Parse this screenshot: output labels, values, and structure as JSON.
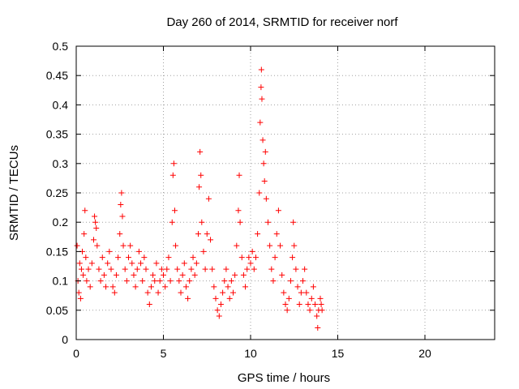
{
  "chart_data": {
    "type": "scatter",
    "title": "Day 260 of 2014, SRMTID for receiver norf",
    "xlabel": "GPS time / hours",
    "ylabel": "SRMTID / TECUs",
    "xlim": [
      0,
      24
    ],
    "ylim": [
      0,
      0.5
    ],
    "xticks": [
      "0",
      "5",
      "10",
      "15",
      "20"
    ],
    "xtick_values": [
      0,
      5,
      10,
      15,
      20
    ],
    "yticks": [
      "0",
      "0.05",
      "0.1",
      "0.15",
      "0.2",
      "0.25",
      "0.3",
      "0.35",
      "0.4",
      "0.45",
      "0.5"
    ],
    "ytick_values": [
      0,
      0.05,
      0.1,
      0.15,
      0.2,
      0.25,
      0.3,
      0.35,
      0.4,
      0.45,
      0.5
    ],
    "grid": true,
    "marker": "plus",
    "color": "#ff0000",
    "series": [
      {
        "name": "SRMTID",
        "points": [
          [
            0.05,
            0.16
          ],
          [
            0.1,
            0.1
          ],
          [
            0.15,
            0.08
          ],
          [
            0.2,
            0.13
          ],
          [
            0.25,
            0.07
          ],
          [
            0.3,
            0.12
          ],
          [
            0.35,
            0.15
          ],
          [
            0.4,
            0.11
          ],
          [
            0.45,
            0.18
          ],
          [
            0.5,
            0.22
          ],
          [
            0.55,
            0.14
          ],
          [
            0.6,
            0.1
          ],
          [
            0.7,
            0.12
          ],
          [
            0.8,
            0.09
          ],
          [
            0.9,
            0.13
          ],
          [
            1.0,
            0.17
          ],
          [
            1.05,
            0.21
          ],
          [
            1.1,
            0.2
          ],
          [
            1.15,
            0.19
          ],
          [
            1.2,
            0.16
          ],
          [
            1.3,
            0.12
          ],
          [
            1.4,
            0.1
          ],
          [
            1.5,
            0.14
          ],
          [
            1.6,
            0.11
          ],
          [
            1.7,
            0.09
          ],
          [
            1.8,
            0.13
          ],
          [
            1.9,
            0.15
          ],
          [
            2.0,
            0.12
          ],
          [
            2.1,
            0.09
          ],
          [
            2.2,
            0.08
          ],
          [
            2.3,
            0.11
          ],
          [
            2.4,
            0.14
          ],
          [
            2.5,
            0.18
          ],
          [
            2.55,
            0.23
          ],
          [
            2.6,
            0.25
          ],
          [
            2.65,
            0.21
          ],
          [
            2.7,
            0.16
          ],
          [
            2.8,
            0.12
          ],
          [
            2.9,
            0.1
          ],
          [
            3.0,
            0.14
          ],
          [
            3.1,
            0.16
          ],
          [
            3.2,
            0.13
          ],
          [
            3.3,
            0.11
          ],
          [
            3.4,
            0.09
          ],
          [
            3.5,
            0.12
          ],
          [
            3.6,
            0.15
          ],
          [
            3.7,
            0.13
          ],
          [
            3.8,
            0.1
          ],
          [
            3.9,
            0.14
          ],
          [
            4.0,
            0.12
          ],
          [
            4.1,
            0.08
          ],
          [
            4.2,
            0.06
          ],
          [
            4.3,
            0.09
          ],
          [
            4.4,
            0.11
          ],
          [
            4.5,
            0.1
          ],
          [
            4.6,
            0.13
          ],
          [
            4.7,
            0.08
          ],
          [
            4.8,
            0.1
          ],
          [
            4.9,
            0.12
          ],
          [
            5.0,
            0.11
          ],
          [
            5.1,
            0.09
          ],
          [
            5.2,
            0.12
          ],
          [
            5.3,
            0.14
          ],
          [
            5.4,
            0.1
          ],
          [
            5.5,
            0.2
          ],
          [
            5.55,
            0.28
          ],
          [
            5.6,
            0.3
          ],
          [
            5.65,
            0.22
          ],
          [
            5.7,
            0.16
          ],
          [
            5.8,
            0.12
          ],
          [
            5.9,
            0.1
          ],
          [
            6.0,
            0.08
          ],
          [
            6.1,
            0.11
          ],
          [
            6.2,
            0.13
          ],
          [
            6.3,
            0.09
          ],
          [
            6.4,
            0.07
          ],
          [
            6.5,
            0.1
          ],
          [
            6.6,
            0.12
          ],
          [
            6.7,
            0.14
          ],
          [
            6.8,
            0.11
          ],
          [
            6.9,
            0.13
          ],
          [
            7.0,
            0.18
          ],
          [
            7.05,
            0.26
          ],
          [
            7.1,
            0.32
          ],
          [
            7.15,
            0.28
          ],
          [
            7.2,
            0.2
          ],
          [
            7.3,
            0.15
          ],
          [
            7.4,
            0.12
          ],
          [
            7.5,
            0.18
          ],
          [
            7.6,
            0.24
          ],
          [
            7.7,
            0.17
          ],
          [
            7.8,
            0.12
          ],
          [
            7.9,
            0.09
          ],
          [
            8.0,
            0.07
          ],
          [
            8.1,
            0.05
          ],
          [
            8.2,
            0.04
          ],
          [
            8.3,
            0.06
          ],
          [
            8.4,
            0.08
          ],
          [
            8.5,
            0.1
          ],
          [
            8.6,
            0.12
          ],
          [
            8.7,
            0.09
          ],
          [
            8.8,
            0.07
          ],
          [
            8.9,
            0.1
          ],
          [
            9.0,
            0.08
          ],
          [
            9.1,
            0.11
          ],
          [
            9.2,
            0.16
          ],
          [
            9.3,
            0.22
          ],
          [
            9.35,
            0.28
          ],
          [
            9.4,
            0.2
          ],
          [
            9.5,
            0.14
          ],
          [
            9.6,
            0.11
          ],
          [
            9.7,
            0.09
          ],
          [
            9.8,
            0.12
          ],
          [
            9.9,
            0.14
          ],
          [
            10.0,
            0.13
          ],
          [
            10.1,
            0.15
          ],
          [
            10.2,
            0.12
          ],
          [
            10.3,
            0.14
          ],
          [
            10.4,
            0.18
          ],
          [
            10.5,
            0.25
          ],
          [
            10.55,
            0.37
          ],
          [
            10.6,
            0.43
          ],
          [
            10.62,
            0.46
          ],
          [
            10.65,
            0.41
          ],
          [
            10.7,
            0.34
          ],
          [
            10.75,
            0.3
          ],
          [
            10.8,
            0.27
          ],
          [
            10.85,
            0.32
          ],
          [
            10.9,
            0.24
          ],
          [
            11.0,
            0.2
          ],
          [
            11.1,
            0.16
          ],
          [
            11.2,
            0.12
          ],
          [
            11.3,
            0.1
          ],
          [
            11.4,
            0.14
          ],
          [
            11.5,
            0.18
          ],
          [
            11.6,
            0.22
          ],
          [
            11.7,
            0.16
          ],
          [
            11.8,
            0.11
          ],
          [
            11.9,
            0.08
          ],
          [
            12.0,
            0.06
          ],
          [
            12.1,
            0.05
          ],
          [
            12.2,
            0.07
          ],
          [
            12.3,
            0.1
          ],
          [
            12.4,
            0.14
          ],
          [
            12.45,
            0.2
          ],
          [
            12.5,
            0.16
          ],
          [
            12.6,
            0.12
          ],
          [
            12.7,
            0.09
          ],
          [
            12.8,
            0.06
          ],
          [
            12.9,
            0.08
          ],
          [
            13.0,
            0.1
          ],
          [
            13.1,
            0.12
          ],
          [
            13.2,
            0.08
          ],
          [
            13.3,
            0.06
          ],
          [
            13.4,
            0.05
          ],
          [
            13.5,
            0.07
          ],
          [
            13.6,
            0.09
          ],
          [
            13.7,
            0.06
          ],
          [
            13.8,
            0.04
          ],
          [
            13.85,
            0.02
          ],
          [
            13.9,
            0.05
          ],
          [
            14.0,
            0.07
          ],
          [
            14.05,
            0.06
          ],
          [
            14.1,
            0.05
          ]
        ]
      }
    ]
  }
}
